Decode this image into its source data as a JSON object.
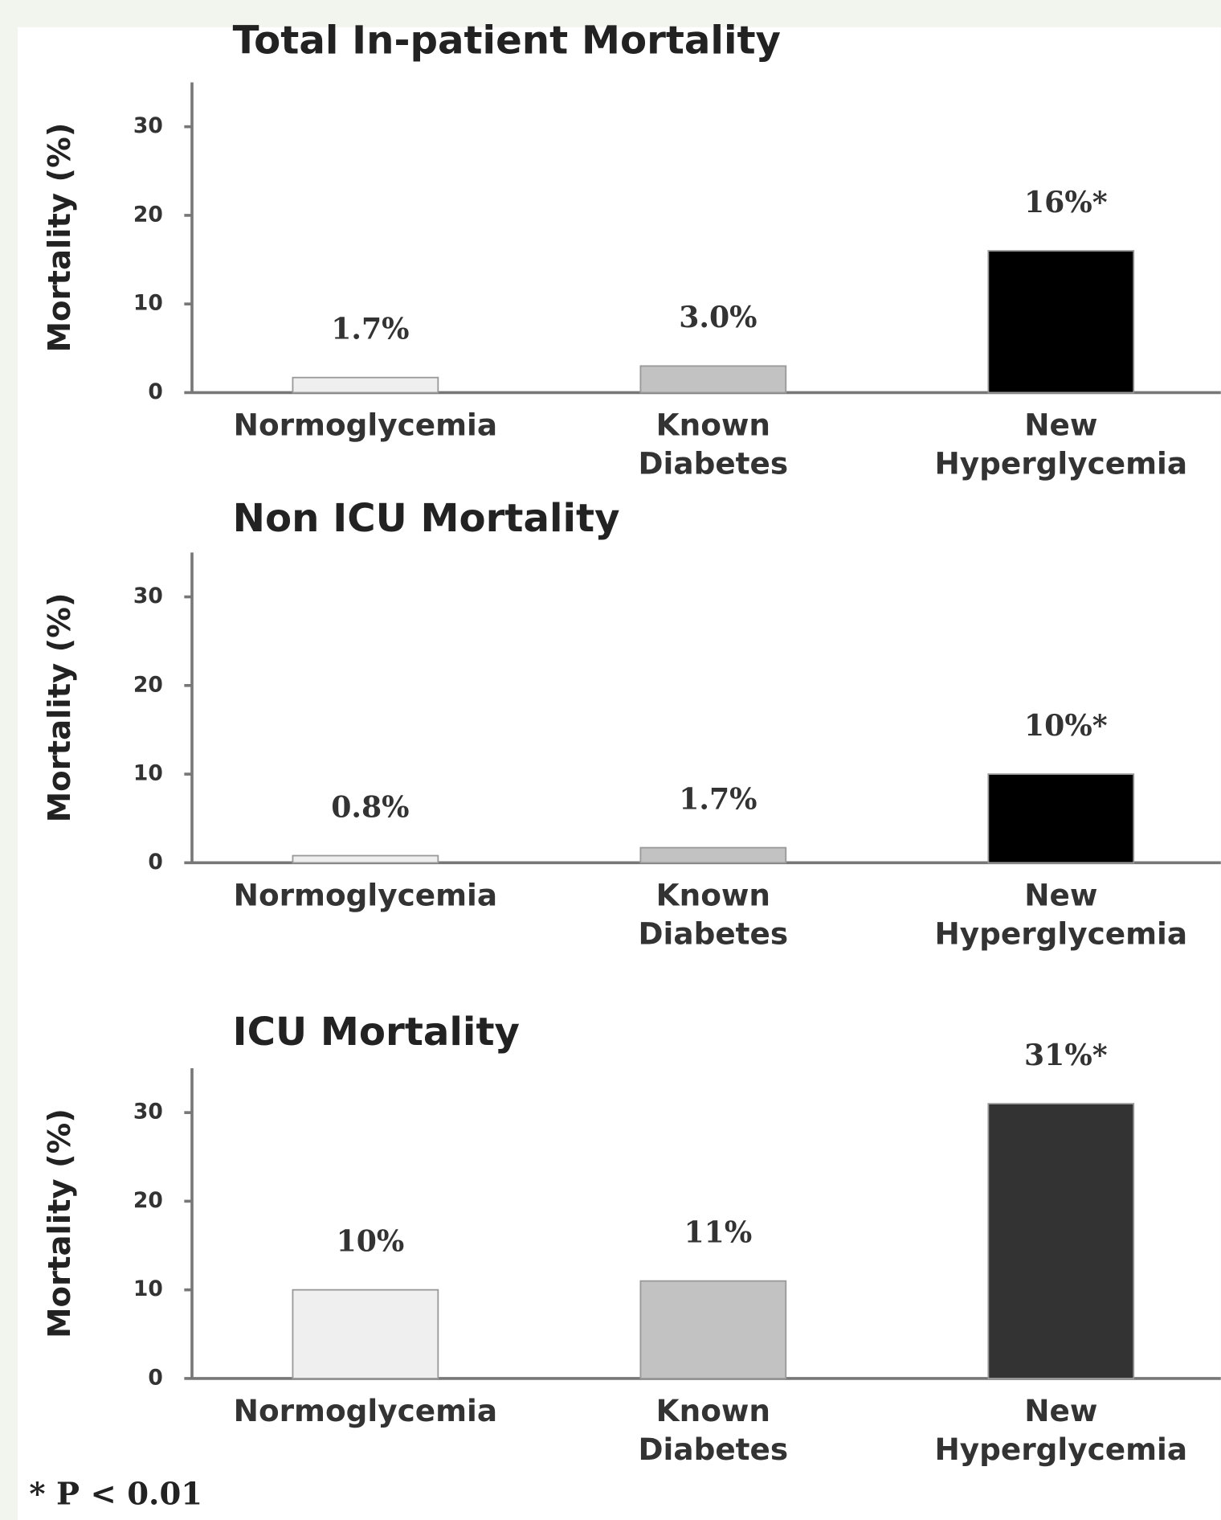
{
  "chart_data": [
    {
      "type": "bar",
      "title": "Total In-patient Mortality",
      "y_label": "Mortality (%)",
      "categories": [
        [
          "Normoglycemia"
        ],
        [
          "Known",
          "Diabetes"
        ],
        [
          "New",
          "Hyperglycemia"
        ]
      ],
      "values": [
        1.7,
        3.0,
        16
      ],
      "value_labels": [
        "1.7%",
        "3.0%",
        "16%*"
      ],
      "colors": [
        "#efefef",
        "#c2c2c2",
        "#000000"
      ],
      "ylim": [
        0,
        35
      ],
      "yticks": [
        0,
        10,
        20,
        30
      ]
    },
    {
      "type": "bar",
      "title": "Non ICU Mortality",
      "y_label": "Mortality (%)",
      "categories": [
        [
          "Normoglycemia"
        ],
        [
          "Known",
          "Diabetes"
        ],
        [
          "New",
          "Hyperglycemia"
        ]
      ],
      "values": [
        0.8,
        1.7,
        10
      ],
      "value_labels": [
        "0.8%",
        "1.7%",
        "10%*"
      ],
      "colors": [
        "#efefef",
        "#c2c2c2",
        "#000000"
      ],
      "ylim": [
        0,
        35
      ],
      "yticks": [
        0,
        10,
        20,
        30
      ]
    },
    {
      "type": "bar",
      "title": "ICU Mortality",
      "y_label": "Mortality (%)",
      "categories": [
        [
          "Normoglycemia"
        ],
        [
          "Known",
          "Diabetes"
        ],
        [
          "New",
          "Hyperglycemia"
        ]
      ],
      "values": [
        10,
        11,
        31
      ],
      "value_labels": [
        "10%",
        "11%",
        "31%*"
      ],
      "colors": [
        "#efefef",
        "#c2c2c2",
        "#333333"
      ],
      "ylim": [
        0,
        35
      ],
      "yticks": [
        0,
        10,
        20,
        30
      ]
    }
  ],
  "footnote": "* P < 0.01"
}
